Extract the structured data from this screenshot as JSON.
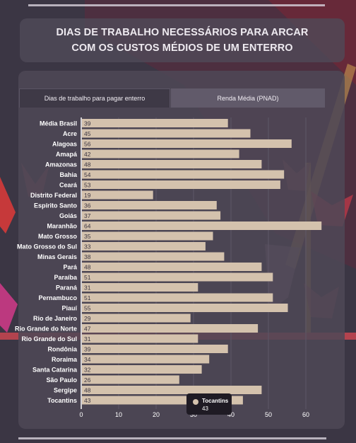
{
  "title": "DIAS DE TRABALHO NECESSÁRIOS PARA ARCAR COM OS CUSTOS MÉDIOS DE UM ENTERRO",
  "tabs": [
    {
      "label": "Dias de trabalho para pagar enterro",
      "active": true
    },
    {
      "label": "Renda Média (PNAD)",
      "active": false
    }
  ],
  "colors": {
    "bar": "#d4c2ad",
    "text": "#ffffff",
    "background": "#3b3644"
  },
  "chart_data": {
    "type": "bar",
    "orientation": "horizontal",
    "categories": [
      "Média Brasil",
      "Acre",
      "Alagoas",
      "Amapá",
      "Amazonas",
      "Bahia",
      "Ceará",
      "Distrito Federal",
      "Espírito Santo",
      "Goiás",
      "Maranhão",
      "Mato Grosso",
      "Mato Grosso do Sul",
      "Minas Gerais",
      "Pará",
      "Paraíba",
      "Paraná",
      "Pernambuco",
      "Piauí",
      "Rio de Janeiro",
      "Rio Grande do Norte",
      "Rio Grande do Sul",
      "Rondônia",
      "Roraima",
      "Santa Catarina",
      "São Paulo",
      "Sergipe",
      "Tocantins"
    ],
    "values": [
      39,
      45,
      56,
      42,
      48,
      54,
      53,
      19,
      36,
      37,
      64,
      35,
      33,
      38,
      48,
      51,
      31,
      51,
      55,
      29,
      47,
      31,
      39,
      34,
      32,
      26,
      48,
      43
    ],
    "xlim": [
      0,
      65
    ],
    "xticks": [
      0,
      10,
      20,
      30,
      40,
      50,
      60
    ],
    "grid": true,
    "legend": "none"
  },
  "tooltip": {
    "name": "Tocantins",
    "value": "43"
  }
}
